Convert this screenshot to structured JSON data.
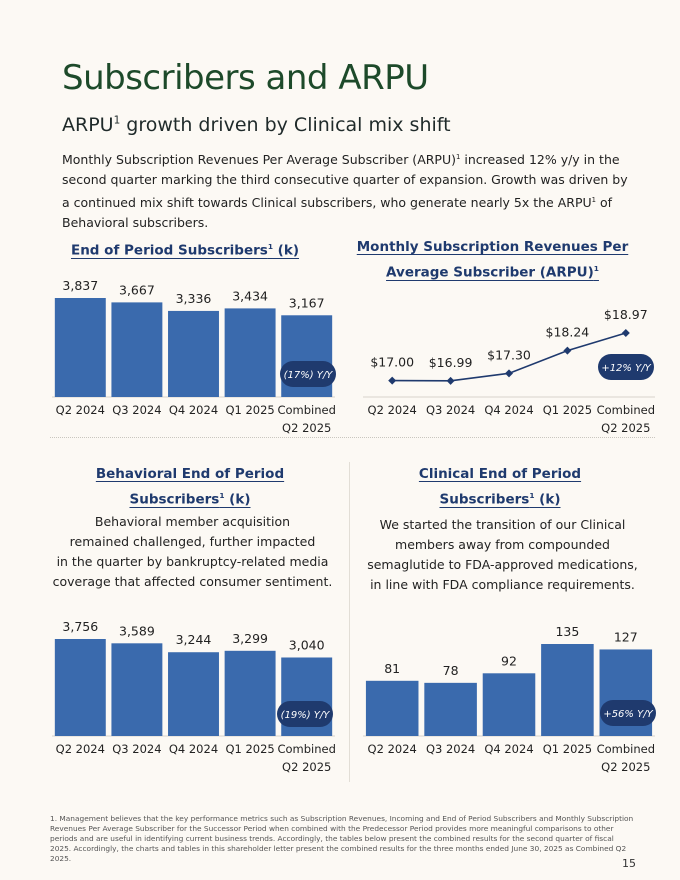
{
  "page": {
    "title": "Subscribers and ARPU",
    "subtitle": "ARPU",
    "subtitle_sup": "1",
    "subtitle_rest": " growth driven by Clinical mix shift",
    "intro_part1": "Monthly Subscription Revenues Per Average Subscriber (ARPU)",
    "intro_sup1": "1",
    "intro_part2": " increased 12% y/y in the second quarter marking the third consecutive quarter of expansion. Growth was driven by a continued mix shift towards Clinical subscribers, who generate nearly 5x the ARPU",
    "intro_sup2": "1",
    "intro_part3": " of Behavioral subscribers.",
    "page_number": "15",
    "footnote": "1. Management believes that the key performance metrics such as Subscription Revenues, Incoming and End of Period Subscribers and Monthly Subscription Revenues Per Average Subscriber for the Successor Period when combined with the Predecessor Period provides more meaningful comparisons to other periods and are useful in identifying current business trends. Accordingly, the tables below present the combined results for the second quarter of fiscal 2025. Accordingly, the charts and tables in this shareholder letter present the combined results for the three months ended June 30, 2025 as Combined Q2 2025."
  },
  "colors": {
    "bar": "#3a6aad",
    "navy": "#1f3a6e",
    "title_green": "#1d4a2a"
  },
  "sections": {
    "eop": {
      "title_a": "End of Period Subscribers",
      "sup": "1",
      "title_b": " (k)"
    },
    "arpu": {
      "title_line1": "Monthly Subscription Revenues Per",
      "title_line2": "Average Subscriber (ARPU)",
      "sup": "1"
    },
    "behavioral": {
      "title_line1": "Behavioral End of Period",
      "title_line2a": "Subscribers",
      "sup": "1",
      "title_line2b": " (k)",
      "desc": [
        "Behavioral member acquisition",
        "remained challenged, further impacted",
        "in the quarter by bankruptcy-related media",
        "coverage that affected consumer sentiment."
      ]
    },
    "clinical": {
      "title_line1": "Clinical End of Period",
      "title_line2a": "Subscribers",
      "sup": "1",
      "title_line2b": " (k)",
      "desc": [
        "We started the transition of our Clinical",
        "members away from compounded",
        "semaglutide to FDA-approved medications,",
        "in line with FDA compliance requirements."
      ]
    }
  },
  "chart_data": [
    {
      "id": "eop",
      "type": "bar",
      "categories": [
        "Q2 2024",
        "Q3 2024",
        "Q4 2024",
        "Q1 2025",
        "Combined\nQ2 2025"
      ],
      "values": [
        3837,
        3667,
        3336,
        3434,
        3167
      ],
      "labels": [
        "3,837",
        "3,667",
        "3,336",
        "3,434",
        "3,167"
      ],
      "ylim": [
        0,
        3837
      ],
      "badge": "(17%) Y/Y"
    },
    {
      "id": "arpu",
      "type": "line",
      "categories": [
        "Q2 2024",
        "Q3 2024",
        "Q4 2024",
        "Q1 2025",
        "Combined\nQ2 2025"
      ],
      "values": [
        17.0,
        16.99,
        17.3,
        18.24,
        18.97
      ],
      "labels": [
        "$17.00",
        "$16.99",
        "$17.30",
        "$18.24",
        "$18.97"
      ],
      "ylim": [
        16.9,
        18.97
      ],
      "badge": "+12% Y/Y"
    },
    {
      "id": "behavioral",
      "type": "bar",
      "categories": [
        "Q2 2024",
        "Q3 2024",
        "Q4 2024",
        "Q1 2025",
        "Combined\nQ2 2025"
      ],
      "values": [
        3756,
        3589,
        3244,
        3299,
        3040
      ],
      "labels": [
        "3,756",
        "3,589",
        "3,244",
        "3,299",
        "3,040"
      ],
      "ylim": [
        0,
        3756
      ],
      "badge": "(19%) Y/Y"
    },
    {
      "id": "clinical",
      "type": "bar",
      "categories": [
        "Q2 2024",
        "Q3 2024",
        "Q4 2024",
        "Q1 2025",
        "Combined\nQ2 2025"
      ],
      "values": [
        81,
        78,
        92,
        135,
        127
      ],
      "labels": [
        "81",
        "78",
        "92",
        "135",
        "127"
      ],
      "ylim": [
        0,
        135
      ],
      "badge": "+56% Y/Y"
    }
  ]
}
